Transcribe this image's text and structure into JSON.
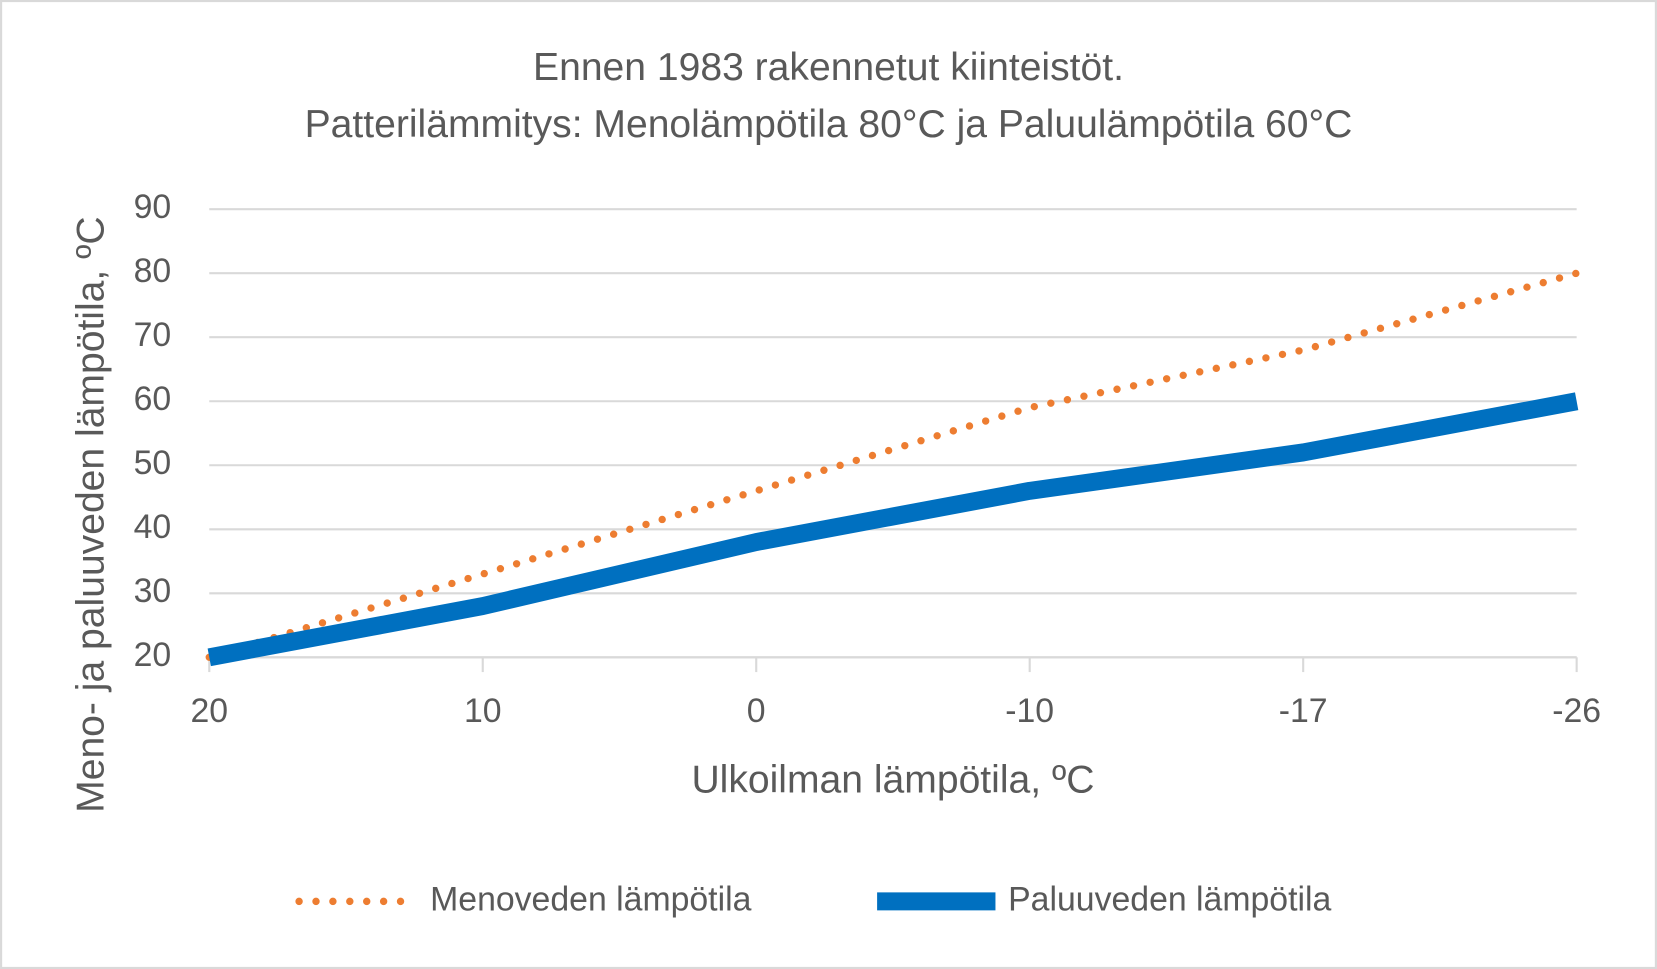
{
  "chart_data": {
    "type": "line",
    "title_lines": [
      "Ennen 1983 rakennetut kiinteistöt.",
      "Patterilämmitys: Menolämpötila 80°C ja Paluulämpötila 60°C"
    ],
    "x_label": "Ulkoilman lämpötila, ºC",
    "y_label": "Meno- ja paluuveden lämpötila, ºC",
    "categories": [
      "20",
      "10",
      "0",
      "-10",
      "-17",
      "-26"
    ],
    "series": [
      {
        "name": "Menoveden lämpötila",
        "color": "#ed7d31",
        "style": "dotted",
        "values": [
          20,
          33,
          46,
          59,
          68,
          80
        ]
      },
      {
        "name": "Paluuveden lämpötila",
        "color": "#0070c0",
        "style": "solid",
        "values": [
          20,
          28,
          38,
          46,
          52,
          60
        ]
      }
    ],
    "ylim": [
      20,
      90
    ],
    "yticks": [
      20,
      30,
      40,
      50,
      60,
      70,
      80,
      90
    ],
    "grid": true,
    "legend": "bottom"
  }
}
